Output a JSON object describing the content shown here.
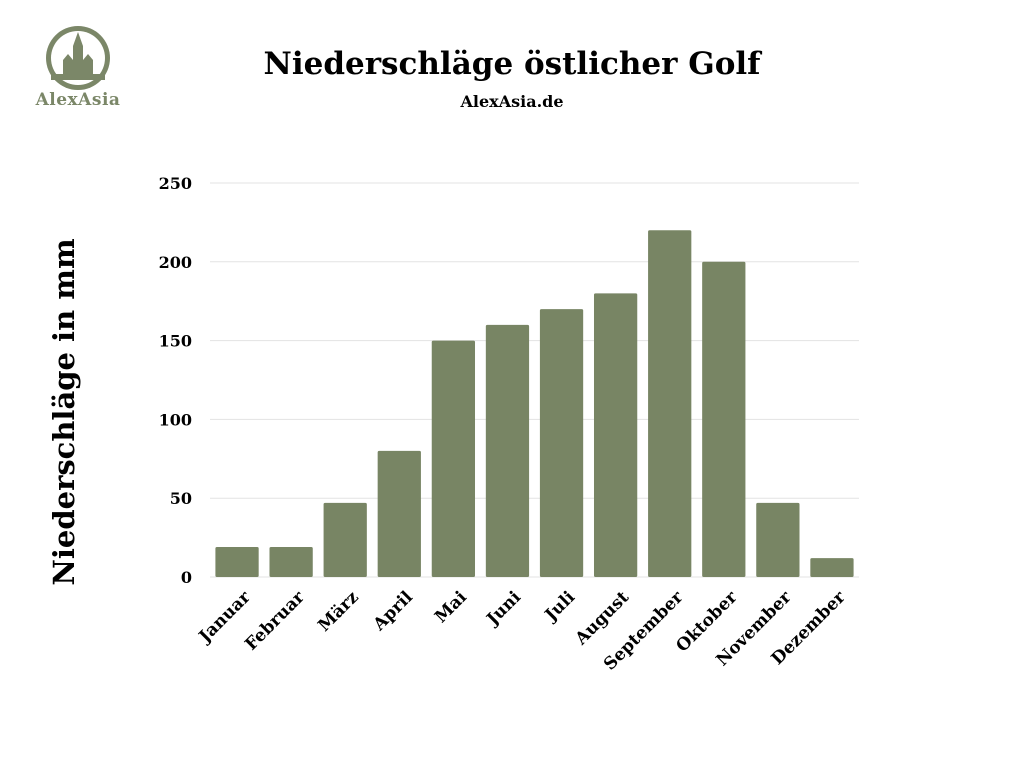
{
  "logo": {
    "text": "AlexAsia",
    "icon": "temple-icon",
    "color": "#7b8768"
  },
  "chart_data": {
    "type": "bar",
    "title": "Niederschläge östlicher Golf",
    "subtitle": "AlexAsia.de",
    "xlabel": "",
    "ylabel": "Niederschläge in mm",
    "categories": [
      "Januar",
      "Februar",
      "März",
      "April",
      "Mai",
      "Juni",
      "Juli",
      "August",
      "September",
      "Oktober",
      "November",
      "Dezember"
    ],
    "values": [
      19,
      19,
      47,
      80,
      150,
      160,
      170,
      180,
      220,
      200,
      47,
      12
    ],
    "ylim": [
      0,
      250
    ],
    "yticks": [
      0,
      50,
      100,
      150,
      200,
      250
    ],
    "grid": true,
    "legend": "none",
    "bar_color": "#788564",
    "grid_color": "#e3e3e3"
  }
}
